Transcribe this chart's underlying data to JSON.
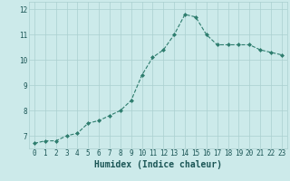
{
  "x": [
    0,
    1,
    2,
    3,
    4,
    5,
    6,
    7,
    8,
    9,
    10,
    11,
    12,
    13,
    14,
    15,
    16,
    17,
    18,
    19,
    20,
    21,
    22,
    23
  ],
  "y": [
    6.7,
    6.8,
    6.8,
    7.0,
    7.1,
    7.5,
    7.6,
    7.8,
    8.0,
    8.4,
    9.4,
    10.1,
    10.4,
    11.0,
    11.8,
    11.7,
    11.0,
    10.6,
    10.6,
    10.6,
    10.6,
    10.4,
    10.3,
    10.2
  ],
  "line_color": "#2e7d6e",
  "marker": "D",
  "marker_size": 2.0,
  "bg_color": "#cceaea",
  "grid_color": "#aacfcf",
  "xlabel": "Humidex (Indice chaleur)",
  "ylim": [
    6.5,
    12.3
  ],
  "xlim": [
    -0.5,
    23.5
  ],
  "yticks": [
    7,
    8,
    9,
    10,
    11,
    12
  ],
  "xticks": [
    0,
    1,
    2,
    3,
    4,
    5,
    6,
    7,
    8,
    9,
    10,
    11,
    12,
    13,
    14,
    15,
    16,
    17,
    18,
    19,
    20,
    21,
    22,
    23
  ],
  "tick_color": "#1a5555",
  "tick_fontsize": 5.5,
  "xlabel_fontsize": 7.0,
  "linewidth": 0.8
}
